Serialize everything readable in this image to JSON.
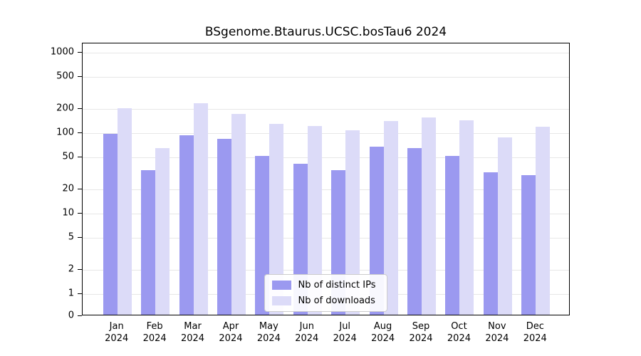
{
  "chart_data": {
    "type": "bar",
    "title": "BSgenome.Btaurus.UCSC.bosTau6 2024",
    "y_scale": "log",
    "y_ticks": [
      0,
      1,
      2,
      5,
      10,
      20,
      50,
      100,
      200,
      500,
      1000
    ],
    "ylim": [
      0,
      1300
    ],
    "grid": true,
    "legend_position": "bottom-center-inside",
    "categories": [
      "Jan",
      "Feb",
      "Mar",
      "Apr",
      "May",
      "Jun",
      "Jul",
      "Aug",
      "Sep",
      "Oct",
      "Nov",
      "Dec"
    ],
    "x_year_label": "2024",
    "series": [
      {
        "name": "Nb of distinct IPs",
        "color": "#9b99f0",
        "values": [
          95,
          33,
          90,
          82,
          50,
          40,
          33,
          65,
          62,
          50,
          31,
          29
        ]
      },
      {
        "name": "Nb of downloads",
        "color": "#dcdbf8",
        "values": [
          195,
          62,
          225,
          165,
          125,
          118,
          105,
          135,
          150,
          140,
          85,
          115
        ]
      }
    ]
  }
}
